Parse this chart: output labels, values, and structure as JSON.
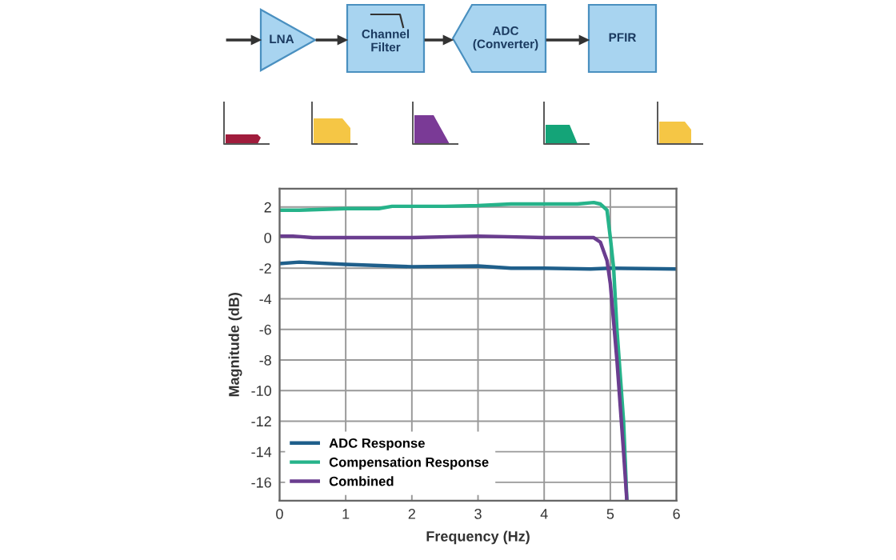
{
  "chart_data": {
    "type": "line",
    "xlabel": "Frequency (Hz)",
    "ylabel": "Magnitude (dB)",
    "annotations": [
      "LNA",
      "Channel\nFilter",
      "ADC\n(Converter)",
      "PFIR"
    ],
    "xlim": [
      0,
      6
    ],
    "xticks": [
      0,
      1,
      2,
      3,
      4,
      5,
      6
    ],
    "ylim": [
      -17.2,
      3.2
    ],
    "yticks": [
      2,
      0,
      -2,
      -4,
      -6,
      -8,
      -10,
      -12,
      -14,
      -16
    ],
    "grid": true,
    "legend": "bottom left",
    "series": [
      {
        "name": "ADC Response",
        "color": "#1f5f8b",
        "x": [
          0,
          0.3,
          1,
          2,
          3,
          3.5,
          4,
          4.7,
          5,
          6
        ],
        "values": [
          -1.7,
          -1.6,
          -1.75,
          -1.9,
          -1.85,
          -2.0,
          -2.0,
          -2.05,
          -2.0,
          -2.05
        ]
      },
      {
        "name": "Compensation Response",
        "color": "#26b38a",
        "x": [
          0,
          0.3,
          1,
          1.5,
          1.7,
          2.5,
          3,
          3.5,
          4,
          4.5,
          4.75,
          4.85,
          4.95,
          5.0,
          5.05,
          5.1,
          5.2,
          5.25
        ],
        "values": [
          1.8,
          1.8,
          1.9,
          1.9,
          2.05,
          2.05,
          2.1,
          2.2,
          2.2,
          2.2,
          2.3,
          2.2,
          1.8,
          0,
          -2,
          -6,
          -12,
          -17.2
        ]
      },
      {
        "name": "Combined",
        "color": "#6a3d8f",
        "x": [
          0,
          0.2,
          0.5,
          1,
          2,
          3,
          4,
          4.75,
          4.85,
          4.95,
          5.0,
          5.1,
          5.2,
          5.25
        ],
        "values": [
          0.1,
          0.1,
          0,
          0,
          0,
          0.1,
          0,
          0,
          -0.3,
          -1.5,
          -3,
          -8,
          -14,
          -17.2
        ]
      }
    ]
  }
}
